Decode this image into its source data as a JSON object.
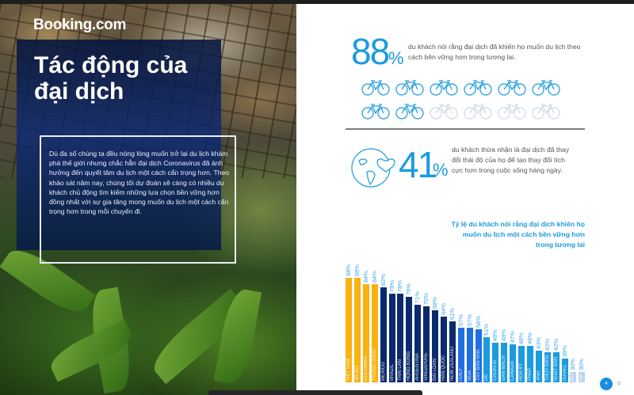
{
  "left_page": {
    "brand": "Booking.com",
    "title": "Tác động của đại dịch",
    "intro": "Dù đa số chúng ta đều nóng lòng muốn trở lại du lịch khám phá thế giới nhưng chắc hẳn đại dịch Coronavirus đã ảnh hưởng đến quyết tâm du lịch một cách cẩn trọng hơn. Theo khảo sát năm nay, chúng tôi dự đoán sẽ càng có nhiều du khách chủ động tìm kiếm những lựa chọn bền vững hơn đồng nhất với sự gia tăng mong muốn du lịch một cách cẩn trọng hơn trong mỗi chuyến đi."
  },
  "right_page": {
    "stat1": {
      "value": "88",
      "unit": "%",
      "text": "du khách nói rằng đại dịch đã khiến họ muốn du lịch theo cách bền vững hơn trong tương lai.",
      "icon": "bicycle-icon",
      "icons_total": 12,
      "icons_filled": 8
    },
    "stat2": {
      "value": "41",
      "unit": "%",
      "text": "du khách thừa nhận là đại dịch đã thay đổi thái độ của họ để tạo thay đổi tích cực hơn trong cuộc sống hàng ngày.",
      "icon": "globe-heart-icon"
    },
    "page_number": "4",
    "colors": {
      "accent": "#1a9be0",
      "yellow": "#f9b20f",
      "navy": "#0b2a6e",
      "blue": "#1f6fe0",
      "light_blue": "#1a9be0",
      "pale": "#bfd4ee"
    }
  },
  "chart_data": {
    "type": "bar",
    "title": "Tỷ lệ du khách nói rằng đại dịch khiến họ muốn du lịch một cách bền vững hơn trong tương lai",
    "xlabel": "",
    "ylabel": "",
    "ylim": [
      0,
      100
    ],
    "grid": false,
    "legend": "none",
    "categories": [
      "VIỆT NAM",
      "ẤN ĐỘ",
      "COLOMBIA",
      "TRUNG QUỐC",
      "MEXICO",
      "BRAZIL",
      "THÁI LAN",
      "HỒNG KÔNG",
      "ARGENTINA",
      "SINGAPORE",
      "ĐÀI LOAN",
      "HÀN QUỐC",
      "NEW ZEALAND",
      "ITALY",
      "NGA",
      "TÂY BAN NHA",
      "ÚC",
      "CROATIA",
      "ĐAN MẠCH",
      "CANADA",
      "HOA KỲ",
      "PHÁP",
      "ANH",
      "THỤY ĐIỂN",
      "NHẬT BẢN",
      "ISRAEL",
      "ĐỨC",
      "HÀ LAN"
    ],
    "values": [
      88,
      88,
      84,
      84,
      82,
      78,
      78,
      76,
      71,
      70,
      68,
      64,
      61,
      57,
      57,
      56,
      51,
      48,
      48,
      47,
      46,
      46,
      43,
      42,
      42,
      38,
      30,
      30
    ],
    "value_labels": [
      "88%",
      "88%",
      "84%",
      "84%",
      "82%",
      "78%",
      "78%",
      "76%",
      "71%",
      "70%",
      "68%",
      "64%",
      "61%",
      "57%",
      "57%",
      "56%",
      "51%",
      "48%",
      "48%",
      "47%",
      "46%",
      "46%",
      "43%",
      "42%",
      "42%",
      "38%",
      "30%",
      "30%"
    ],
    "bar_colors": [
      "#f9b20f",
      "#f9b20f",
      "#f9b20f",
      "#f9b20f",
      "#0b2a6e",
      "#0b2a6e",
      "#0b2a6e",
      "#0b2a6e",
      "#0b2a6e",
      "#0b2a6e",
      "#0b2a6e",
      "#0b2a6e",
      "#0b2a6e",
      "#1f6fe0",
      "#1f6fe0",
      "#1f6fe0",
      "#1a9be0",
      "#1a9be0",
      "#1a9be0",
      "#1a9be0",
      "#1a9be0",
      "#1a9be0",
      "#1a9be0",
      "#1a9be0",
      "#1a9be0",
      "#1a9be0",
      "#bfd4ee",
      "#bfd4ee"
    ]
  }
}
